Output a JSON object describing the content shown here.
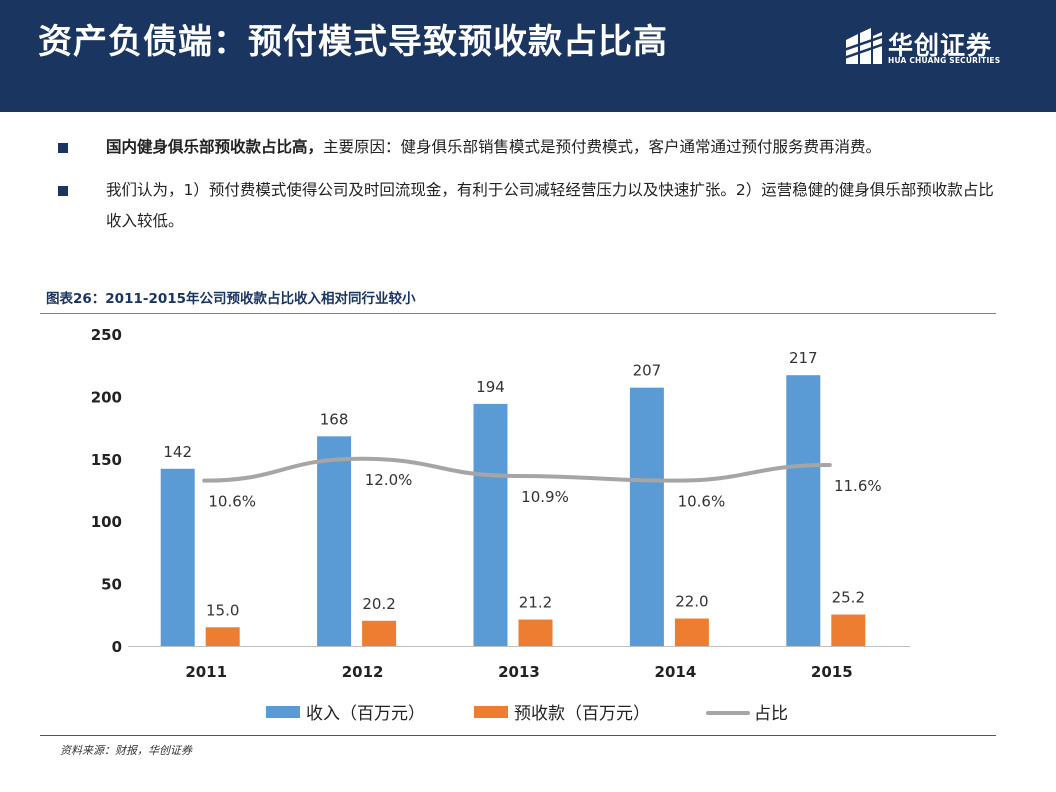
{
  "header": {
    "title": "资产负债端：预付模式导致预收款占比高",
    "brand_cn": "华创证券",
    "brand_en": "HUA CHUANG SECURITIES"
  },
  "bullets": [
    {
      "bold": "国内健身俱乐部预收款占比高，",
      "text": "主要原因：健身俱乐部销售模式是预付费模式，客户通常通过预付服务费再消费。"
    },
    {
      "bold": "",
      "text": "我们认为，1）预付费模式使得公司及时回流现金，有利于公司减轻经营压力以及快速扩张。2）运营稳健的健身俱乐部预收款占比收入较低。"
    }
  ],
  "figure": {
    "title": "图表26：2011-2015年公司预收款占比收入相对同行业较小"
  },
  "source": "资料来源：财报，华创证券",
  "colors": {
    "header_bg": "#1b3561",
    "revenue": "#5b9bd5",
    "prepaid": "#ed7d31",
    "ratio": "#a5a5a5"
  },
  "chart_data": {
    "type": "bar",
    "categories": [
      "2011",
      "2012",
      "2013",
      "2014",
      "2015"
    ],
    "series": [
      {
        "name": "收入（百万元）",
        "kind": "bar",
        "values": [
          142,
          168,
          194,
          207,
          217
        ],
        "labels": [
          "142",
          "168",
          "194",
          "207",
          "217"
        ]
      },
      {
        "name": "预收款（百万元）",
        "kind": "bar",
        "values": [
          15.0,
          20.2,
          21.2,
          22.0,
          25.2
        ],
        "labels": [
          "15.0",
          "20.2",
          "21.2",
          "22.0",
          "25.2"
        ]
      },
      {
        "name": "占比",
        "kind": "line",
        "values": [
          10.6,
          12.0,
          10.9,
          10.6,
          11.6
        ],
        "labels": [
          "10.6%",
          "12.0%",
          "10.9%",
          "10.6%",
          "11.6%"
        ],
        "unit": "%"
      }
    ],
    "y_ticks": [
      "0",
      "50",
      "100",
      "150",
      "200",
      "250"
    ],
    "ylim": [
      0,
      250
    ],
    "y2lim": [
      0,
      20
    ],
    "legend_position": "bottom",
    "grid": false
  }
}
